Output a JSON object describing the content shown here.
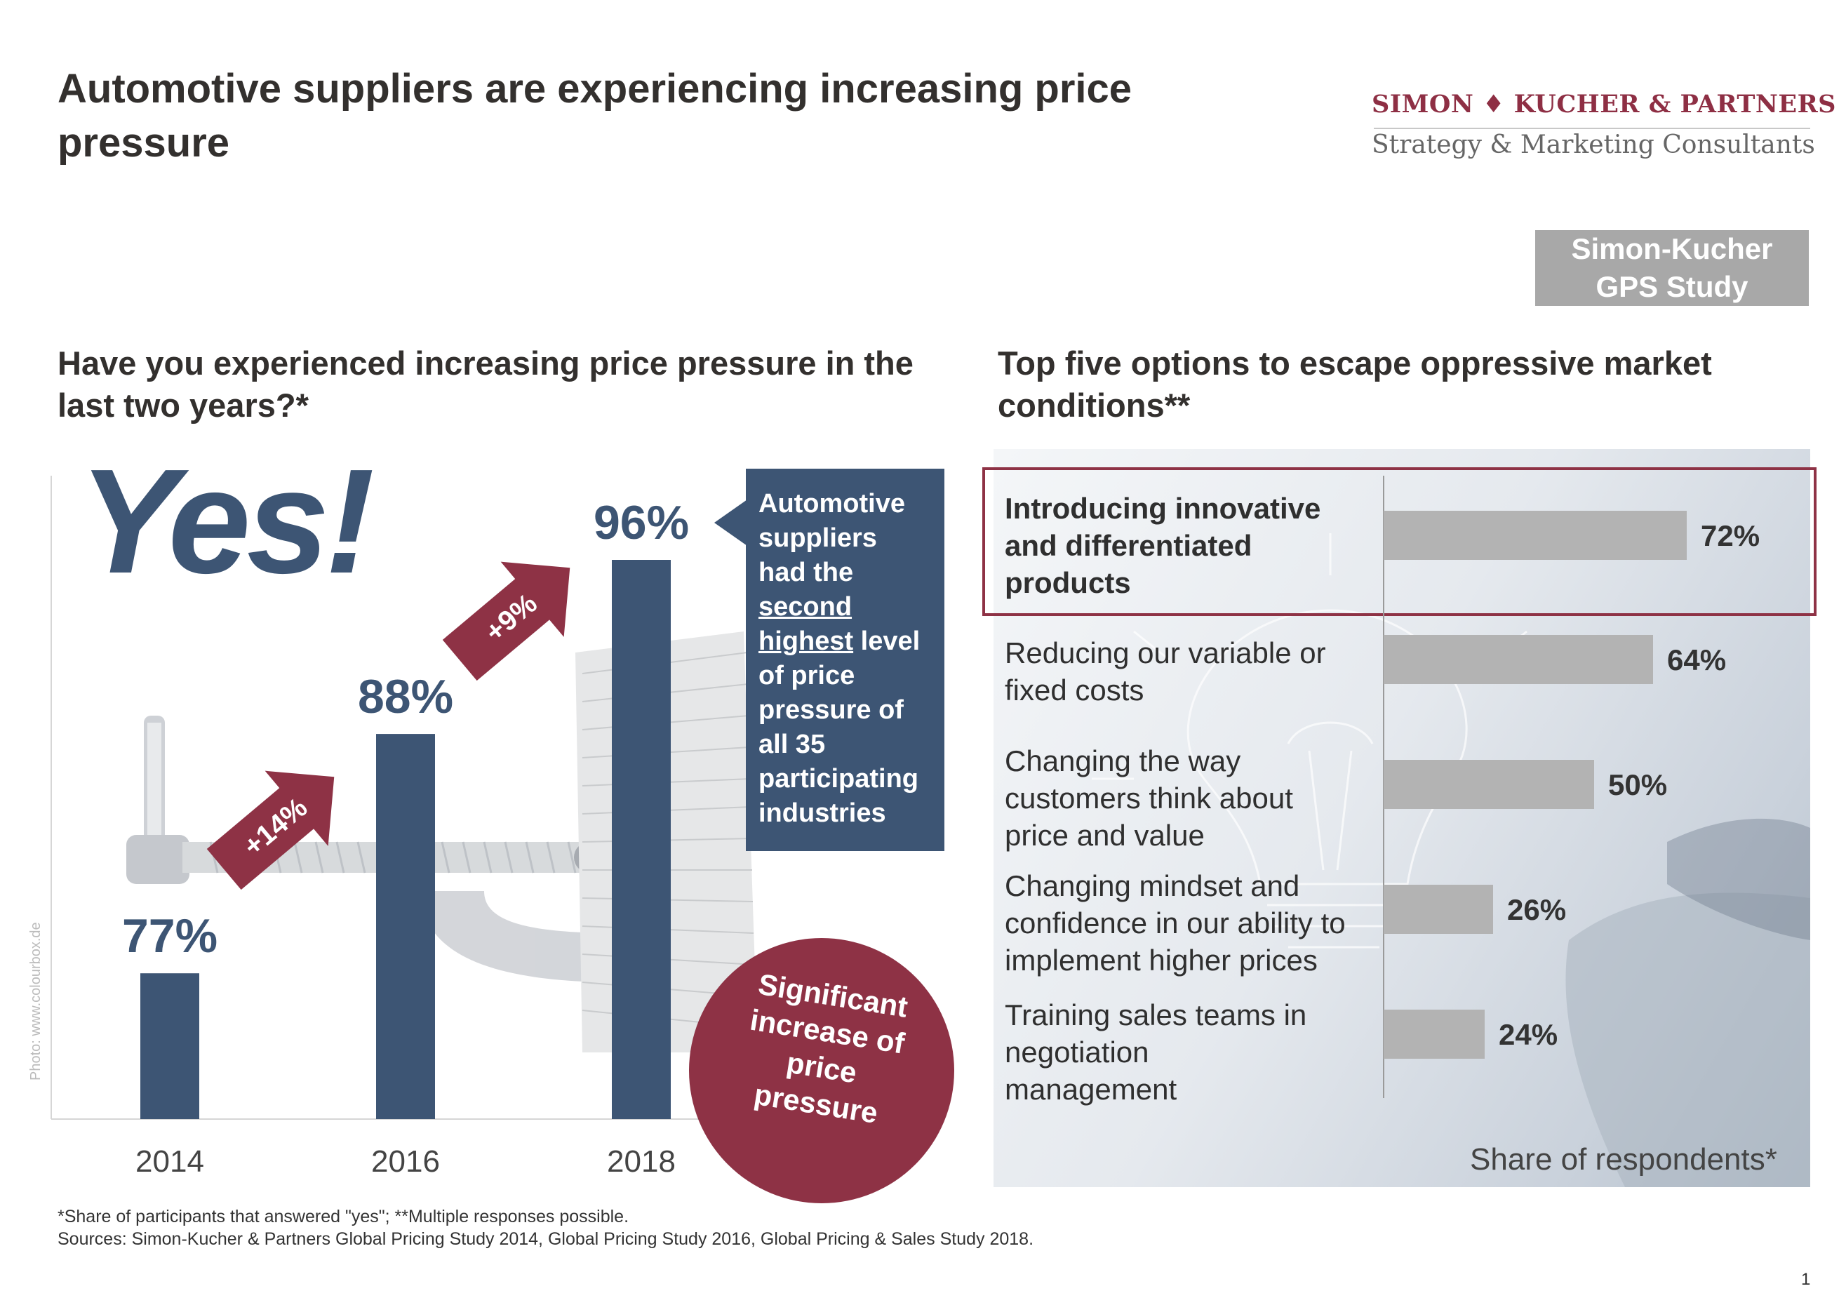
{
  "header": {
    "title": "Automotive suppliers are experiencing increasing price pressure",
    "logo_name": "SIMON ♦ KUCHER & PARTNERS",
    "logo_tagline": "Strategy & Marketing Consultants",
    "study_badge": [
      "Simon-Kucher",
      "GPS Study"
    ]
  },
  "left": {
    "question": "Have you experienced increasing price pressure in the last two years?*",
    "yes_label": "Yes!",
    "note_lines": [
      "Automotive",
      "suppliers",
      "had the",
      "second",
      "highest level",
      "of price",
      "pressure of",
      "all 35",
      "participating",
      "industries"
    ],
    "badge_lines": [
      "Significant",
      "increase of",
      "price",
      "pressure"
    ],
    "photo_credit": "Photo: www.colourbox.de"
  },
  "right": {
    "question": "Top five options to escape oppressive market conditions**",
    "axis_caption": "Share of respondents*"
  },
  "colors": {
    "bar_navy": "#3d5574",
    "accent_red": "#8e3245",
    "bar_grey": "#b3b3b3"
  },
  "chart_data": [
    {
      "type": "bar",
      "title": "Have you experienced increasing price pressure in the last two years?*",
      "categories": [
        "2014",
        "2016",
        "2018"
      ],
      "values": [
        77,
        88,
        96
      ],
      "value_labels": [
        "77%",
        "88%",
        "96%"
      ],
      "changes": [
        "+14%",
        "+9%"
      ],
      "ylim": [
        0,
        100
      ]
    },
    {
      "type": "bar",
      "orientation": "horizontal",
      "title": "Top five options to escape oppressive market conditions**",
      "categories": [
        "Introducing innovative and differentiated products",
        "Reducing our variable or fixed costs",
        "Changing the way customers think about price and value",
        "Changing mindset and confidence in our ability to implement higher prices",
        "Training sales teams in negotiation management"
      ],
      "category_lines": [
        [
          "Introducing innovative",
          "and differentiated",
          "products"
        ],
        [
          "Reducing our variable or",
          "fixed costs"
        ],
        [
          "Changing the way",
          "customers think about",
          "price and value"
        ],
        [
          "Changing mindset and",
          "confidence in our ability to",
          "implement higher prices"
        ],
        [
          "Training sales teams in",
          "negotiation",
          "management"
        ]
      ],
      "values": [
        72,
        64,
        50,
        26,
        24
      ],
      "value_labels": [
        "72%",
        "64%",
        "50%",
        "26%",
        "24%"
      ],
      "xlabel": "Share of respondents*",
      "highlight_index": 0,
      "xlim": [
        0,
        100
      ]
    }
  ],
  "footer": {
    "note": "*Share of participants that answered \"yes\";  **Multiple responses possible.",
    "sources": "Sources: Simon-Kucher & Partners Global Pricing Study 2014, Global Pricing Study 2016, Global Pricing & Sales Study 2018.",
    "page_number": "1"
  }
}
